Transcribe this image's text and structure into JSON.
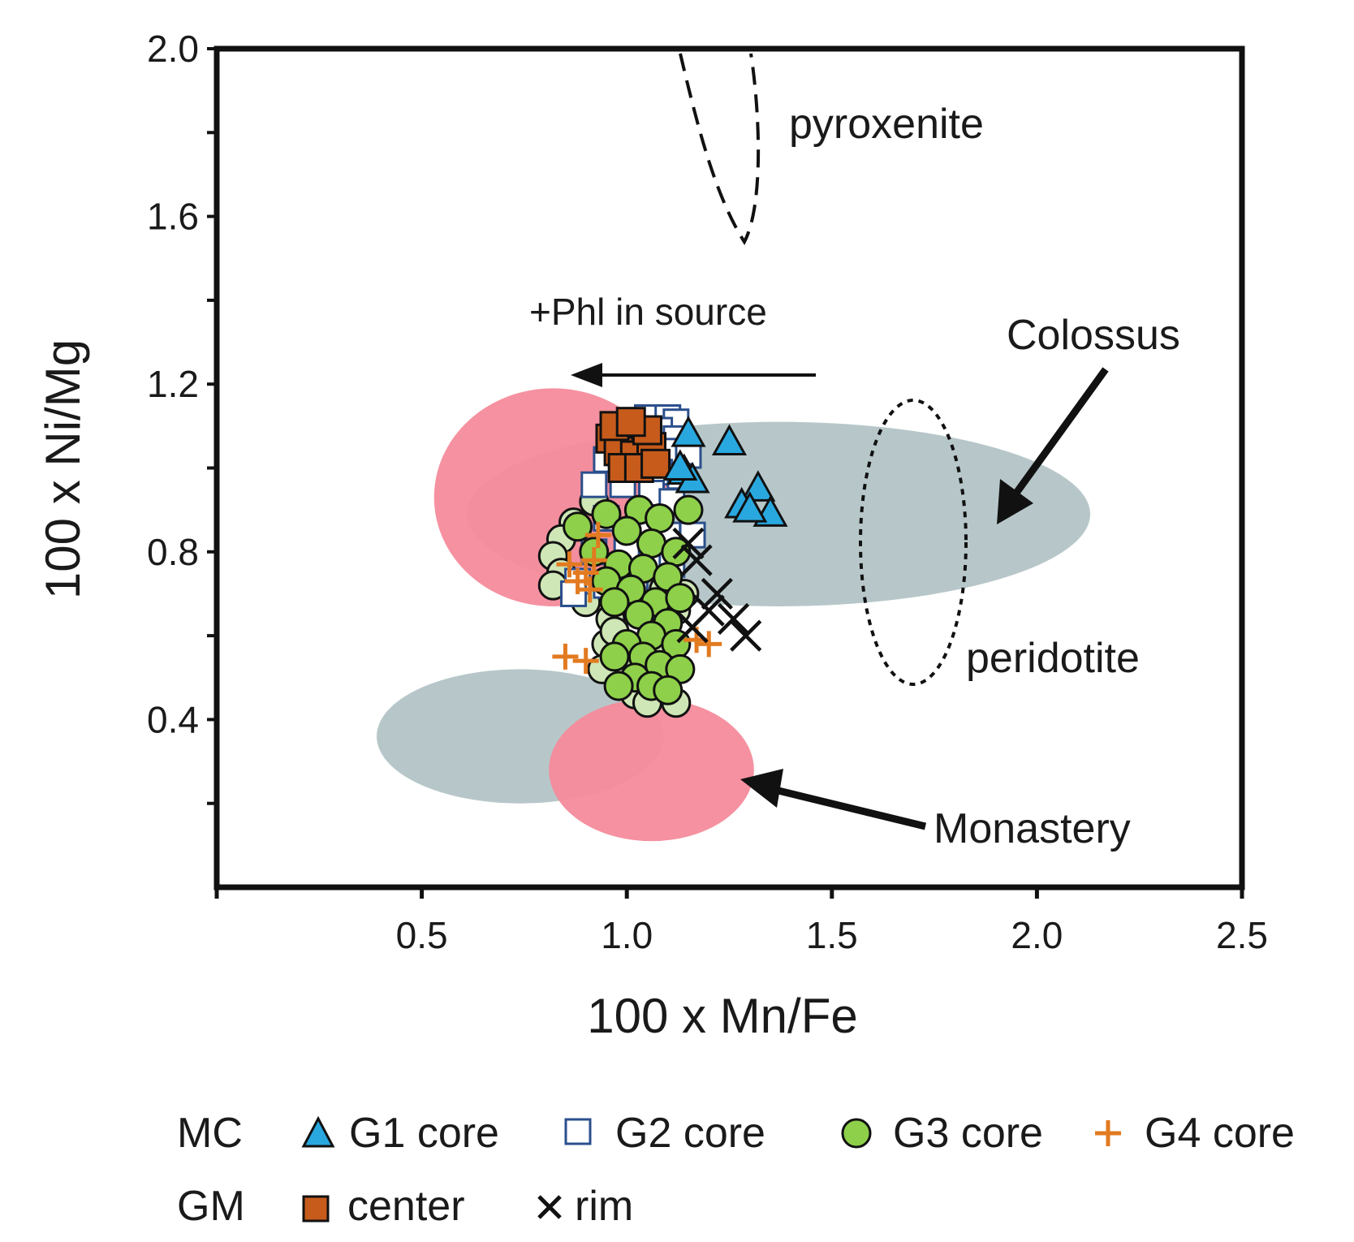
{
  "chart_data": {
    "type": "scatter",
    "xlabel": "100 x Mn/Fe",
    "ylabel": "100 x Ni/Mg",
    "xlim": [
      0,
      2.5
    ],
    "ylim": [
      0,
      2.0
    ],
    "x_ticks": [
      0.5,
      1.0,
      1.5,
      2.0,
      2.5
    ],
    "x_tick_labels": [
      "0.5",
      "1.0",
      "1.5",
      "2.0",
      "2.5"
    ],
    "y_ticks": [
      0.4,
      0.8,
      1.2,
      1.6,
      2.0
    ],
    "y_tick_labels": [
      "0.4",
      "0.8",
      "1.2",
      "1.6",
      "2.0"
    ],
    "colors": {
      "g1": "#29a8e0",
      "g2": "#2b4f8c",
      "g3": "#8ed04a",
      "g3_light": "#cfe6b6",
      "g4": "#e27a20",
      "center": "#c65b1c",
      "rim": "#111111",
      "pink": "#f48b9b",
      "grey": "#b7c7c9"
    },
    "fields": [
      {
        "name": "Colossus kimberlite (grey)",
        "cx": 1.37,
        "cy": 0.89,
        "rx": 0.76,
        "ry": 0.22,
        "color": "#b7c7c9"
      },
      {
        "name": "Colossus kimberlite (pink)",
        "cx": 0.82,
        "cy": 0.93,
        "rx": 0.29,
        "ry": 0.26,
        "color": "#f48b9b"
      },
      {
        "name": "Monastery kimberlite (grey)",
        "cx": 0.74,
        "cy": 0.36,
        "rx": 0.35,
        "ry": 0.16,
        "color": "#b7c7c9"
      },
      {
        "name": "Monastery kimberlite (pink)",
        "cx": 1.06,
        "cy": 0.28,
        "rx": 0.25,
        "ry": 0.17,
        "color": "#f48b9b"
      }
    ],
    "series": [
      {
        "name": "G1 core",
        "marker": "triangle",
        "points": [
          [
            1.15,
            1.08
          ],
          [
            1.25,
            1.06
          ],
          [
            1.14,
            0.99
          ],
          [
            1.16,
            0.97
          ],
          [
            1.32,
            0.95
          ],
          [
            1.28,
            0.91
          ],
          [
            1.35,
            0.89
          ],
          [
            1.3,
            0.9
          ],
          [
            1.13,
            1.0
          ]
        ]
      },
      {
        "name": "G2 core",
        "marker": "square-open",
        "points": [
          [
            1.05,
            1.12
          ],
          [
            1.1,
            1.12
          ],
          [
            1.12,
            1.11
          ],
          [
            1.0,
            1.1
          ],
          [
            1.08,
            1.09
          ],
          [
            1.12,
            1.07
          ],
          [
            0.97,
            1.06
          ],
          [
            1.04,
            1.05
          ],
          [
            1.1,
            1.04
          ],
          [
            1.15,
            1.03
          ],
          [
            0.95,
            1.02
          ],
          [
            1.02,
            1.0
          ],
          [
            1.08,
            0.99
          ],
          [
            1.13,
            0.98
          ],
          [
            0.92,
            0.96
          ],
          [
            0.99,
            0.96
          ],
          [
            1.06,
            0.94
          ],
          [
            1.11,
            0.92
          ],
          [
            0.95,
            0.88
          ],
          [
            1.03,
            0.86
          ],
          [
            1.1,
            0.84
          ],
          [
            1.16,
            0.84
          ],
          [
            0.92,
            0.8
          ],
          [
            1.0,
            0.8
          ],
          [
            1.07,
            0.78
          ],
          [
            1.11,
            0.77
          ],
          [
            0.88,
            0.73
          ],
          [
            0.95,
            0.72
          ],
          [
            1.02,
            0.72
          ],
          [
            0.87,
            0.7
          ]
        ]
      },
      {
        "name": "G3 core",
        "marker": "circle",
        "points": [
          [
            0.95,
            0.89
          ],
          [
            1.03,
            0.9
          ],
          [
            1.08,
            0.88
          ],
          [
            1.15,
            0.9
          ],
          [
            0.88,
            0.86
          ],
          [
            1.0,
            0.85
          ],
          [
            1.06,
            0.82
          ],
          [
            1.12,
            0.8
          ],
          [
            0.92,
            0.8
          ],
          [
            0.98,
            0.77
          ],
          [
            1.04,
            0.76
          ],
          [
            1.1,
            0.74
          ],
          [
            0.95,
            0.73
          ],
          [
            1.01,
            0.71
          ],
          [
            1.07,
            0.68
          ],
          [
            1.13,
            0.69
          ],
          [
            0.97,
            0.68
          ],
          [
            1.03,
            0.65
          ],
          [
            1.1,
            0.63
          ],
          [
            1.06,
            0.6
          ],
          [
            1.0,
            0.58
          ],
          [
            1.12,
            0.58
          ],
          [
            1.04,
            0.55
          ],
          [
            0.97,
            0.55
          ],
          [
            1.08,
            0.53
          ],
          [
            1.13,
            0.52
          ],
          [
            1.02,
            0.5
          ],
          [
            0.98,
            0.48
          ],
          [
            1.06,
            0.48
          ],
          [
            1.1,
            0.47
          ]
        ]
      },
      {
        "name": "G3 core (light)",
        "marker": "circle-light",
        "points": [
          [
            0.92,
            0.92
          ],
          [
            0.87,
            0.87
          ],
          [
            0.84,
            0.83
          ],
          [
            0.82,
            0.79
          ],
          [
            0.84,
            0.75
          ],
          [
            0.82,
            0.72
          ],
          [
            0.9,
            0.68
          ],
          [
            0.96,
            0.64
          ],
          [
            1.09,
            0.71
          ],
          [
            1.14,
            0.7
          ],
          [
            1.12,
            0.66
          ],
          [
            0.95,
            0.58
          ],
          [
            1.06,
            0.57
          ],
          [
            1.0,
            0.53
          ],
          [
            1.09,
            0.5
          ],
          [
            1.02,
            0.46
          ],
          [
            0.94,
            0.52
          ],
          [
            1.05,
            0.44
          ],
          [
            1.12,
            0.44
          ],
          [
            0.97,
            0.61
          ],
          [
            1.08,
            0.79
          ],
          [
            1.02,
            0.86
          ]
        ]
      },
      {
        "name": "G4 core",
        "marker": "plus",
        "points": [
          [
            0.86,
            0.77
          ],
          [
            0.9,
            0.75
          ],
          [
            0.92,
            0.78
          ],
          [
            0.88,
            0.73
          ],
          [
            0.91,
            0.71
          ],
          [
            0.93,
            0.84
          ],
          [
            0.85,
            0.55
          ],
          [
            0.9,
            0.54
          ],
          [
            1.17,
            0.59
          ],
          [
            1.2,
            0.58
          ]
        ]
      },
      {
        "name": "center",
        "marker": "square-filled",
        "points": [
          [
            0.96,
            1.07
          ],
          [
            1.0,
            1.08
          ],
          [
            1.04,
            1.06
          ],
          [
            0.98,
            1.04
          ],
          [
            1.02,
            1.03
          ],
          [
            1.06,
            1.05
          ],
          [
            0.99,
            1.0
          ],
          [
            1.03,
            1.0
          ],
          [
            1.07,
            1.01
          ],
          [
            0.97,
            1.1
          ],
          [
            1.05,
            1.09
          ],
          [
            1.01,
            1.11
          ]
        ]
      },
      {
        "name": "rim",
        "marker": "cross",
        "points": [
          [
            1.15,
            0.82
          ],
          [
            1.17,
            0.78
          ],
          [
            1.2,
            0.66
          ],
          [
            1.22,
            0.7
          ],
          [
            1.26,
            0.64
          ],
          [
            1.29,
            0.6
          ],
          [
            1.16,
            0.62
          ]
        ]
      }
    ],
    "annotations": {
      "pyroxenite": "pyroxenite",
      "phl_source": "+Phl in source",
      "colossus": "Colossus",
      "peridotite": "peridotite",
      "monastery": "Monastery"
    },
    "legend": {
      "row1_group": "MC",
      "row2_group": "GM",
      "g1": "G1 core",
      "g2": "G2 core",
      "g3": "G3 core",
      "g4": "G4 core",
      "center": "center",
      "rim": "rim"
    }
  }
}
